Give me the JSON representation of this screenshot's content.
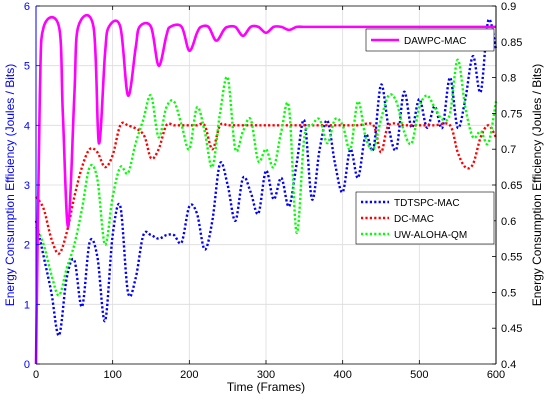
{
  "chart_data": {
    "type": "line",
    "xlabel": "Time (Frames)",
    "ylabel_left": "Energy Consumption Efficiency (Joules / Bits)",
    "ylabel_right": "Energy Consumption Efficiency (Joules / Bits)",
    "xlim": [
      0,
      600
    ],
    "ylim_left": [
      0,
      6
    ],
    "ylim_right": [
      0.4,
      0.9
    ],
    "xticks": [
      "0",
      "100",
      "200",
      "300",
      "400",
      "500",
      "600"
    ],
    "yticks_left": [
      "0",
      "1",
      "2",
      "3",
      "4",
      "5",
      "6"
    ],
    "yticks_right": [
      "0.4",
      "0.45",
      "0.5",
      "0.55",
      "0.6",
      "0.65",
      "0.7",
      "0.75",
      "0.8",
      "0.85",
      "0.9"
    ],
    "grid": true,
    "colors": {
      "left_axis": "#0000ff",
      "right_axis": "#000000",
      "grid": "#dcdcdc",
      "dawpc": "#ff00ff",
      "tdtspc": "#0000ff",
      "dcmac": "#ff0000",
      "uwaloha": "#00ff00"
    },
    "legends": [
      {
        "position": "top-right",
        "entries": [
          "DAWPC-MAC"
        ]
      },
      {
        "position": "middle-right",
        "entries": [
          "TDTSPC-MAC",
          "DC-MAC",
          "UW-ALOHA-QM"
        ]
      }
    ],
    "series": [
      {
        "name": "DAWPC-MAC",
        "axis": "left",
        "style": "solid",
        "x": [
          0,
          5,
          10,
          30,
          35,
          42,
          50,
          55,
          75,
          82,
          90,
          95,
          110,
          120,
          130,
          135,
          150,
          160,
          170,
          175,
          190,
          200,
          210,
          215,
          225,
          235,
          245,
          250,
          260,
          270,
          280,
          290,
          300,
          310,
          320,
          330,
          340,
          350,
          360,
          600
        ],
        "y": [
          0,
          4.5,
          5.65,
          5.65,
          4.2,
          2.3,
          4.5,
          5.65,
          5.65,
          3.7,
          5.2,
          5.65,
          5.65,
          4.5,
          5.3,
          5.65,
          5.65,
          5.0,
          5.5,
          5.65,
          5.65,
          5.25,
          5.55,
          5.65,
          5.65,
          5.42,
          5.6,
          5.65,
          5.65,
          5.5,
          5.65,
          5.65,
          5.55,
          5.65,
          5.65,
          5.6,
          5.65,
          5.65,
          5.65,
          5.65
        ]
      },
      {
        "name": "TDTSPC-MAC",
        "axis": "right",
        "style": "dotted",
        "x": [
          0,
          10,
          20,
          30,
          40,
          50,
          60,
          70,
          80,
          90,
          100,
          110,
          120,
          130,
          140,
          150,
          160,
          170,
          180,
          190,
          200,
          210,
          220,
          230,
          240,
          250,
          260,
          270,
          280,
          290,
          300,
          310,
          320,
          330,
          340,
          350,
          360,
          370,
          380,
          390,
          400,
          410,
          420,
          430,
          440,
          450,
          460,
          470,
          480,
          490,
          500,
          510,
          520,
          530,
          540,
          550,
          560,
          570,
          580,
          590,
          600
        ],
        "y": [
          0.6,
          0.55,
          0.5,
          0.44,
          0.52,
          0.545,
          0.48,
          0.57,
          0.55,
          0.46,
          0.58,
          0.62,
          0.5,
          0.52,
          0.58,
          0.58,
          0.575,
          0.58,
          0.58,
          0.57,
          0.62,
          0.61,
          0.56,
          0.6,
          0.68,
          0.65,
          0.6,
          0.66,
          0.64,
          0.61,
          0.67,
          0.63,
          0.66,
          0.62,
          0.68,
          0.74,
          0.63,
          0.7,
          0.74,
          0.68,
          0.64,
          0.7,
          0.66,
          0.72,
          0.7,
          0.79,
          0.73,
          0.7,
          0.78,
          0.73,
          0.77,
          0.73,
          0.76,
          0.73,
          0.8,
          0.73,
          0.77,
          0.83,
          0.78,
          0.88,
          0.84
        ]
      },
      {
        "name": "DC-MAC",
        "axis": "left",
        "style": "dotted",
        "x": [
          0,
          10,
          20,
          30,
          40,
          50,
          60,
          70,
          80,
          90,
          100,
          110,
          120,
          140,
          150,
          160,
          170,
          180,
          190,
          200,
          210,
          220,
          230,
          240,
          250,
          260,
          270,
          280,
          290,
          300,
          320,
          340,
          360,
          380,
          400,
          420,
          440,
          450,
          460,
          480,
          500,
          520,
          540,
          550,
          560,
          570,
          580,
          590,
          600
        ],
        "y": [
          2.8,
          2.6,
          2.1,
          1.85,
          2.2,
          2.8,
          3.3,
          3.6,
          3.55,
          3.3,
          3.5,
          4.0,
          4.0,
          3.85,
          3.45,
          3.6,
          4.0,
          4.0,
          4.0,
          4.0,
          4.0,
          4.0,
          3.6,
          4.0,
          4.0,
          4.0,
          4.0,
          4.0,
          4.0,
          4.0,
          4.0,
          4.0,
          4.0,
          4.0,
          4.0,
          4.0,
          4.0,
          3.55,
          4.0,
          4.0,
          4.0,
          4.0,
          4.0,
          3.55,
          3.3,
          3.35,
          3.8,
          4.0,
          3.8
        ]
      },
      {
        "name": "UW-ALOHA-QM",
        "axis": "left",
        "style": "dotted",
        "x": [
          0,
          10,
          20,
          30,
          40,
          50,
          60,
          70,
          80,
          90,
          100,
          110,
          120,
          130,
          140,
          150,
          160,
          170,
          180,
          190,
          200,
          210,
          220,
          230,
          240,
          250,
          260,
          270,
          280,
          290,
          300,
          310,
          320,
          330,
          340,
          350,
          360,
          370,
          380,
          390,
          400,
          410,
          420,
          430,
          440,
          450,
          460,
          470,
          480,
          490,
          500,
          510,
          520,
          530,
          540,
          550,
          560,
          570,
          580,
          590,
          600
        ],
        "y": [
          2.3,
          2.0,
          1.5,
          1.15,
          1.6,
          2.0,
          2.6,
          3.3,
          3.1,
          2.0,
          2.8,
          3.3,
          3.2,
          3.7,
          4.1,
          4.5,
          3.8,
          4.3,
          4.4,
          4.0,
          3.6,
          4.3,
          3.9,
          3.3,
          4.2,
          4.8,
          3.6,
          3.9,
          4.1,
          3.4,
          3.6,
          3.3,
          3.9,
          4.3,
          2.2,
          3.8,
          4.0,
          4.1,
          3.7,
          4.1,
          4.0,
          3.6,
          4.4,
          3.8,
          3.6,
          4.1,
          4.5,
          4.4,
          3.9,
          3.7,
          4.3,
          4.5,
          4.3,
          4.1,
          4.2,
          5.1,
          4.3,
          3.8,
          3.9,
          3.7,
          4.4
        ]
      }
    ]
  }
}
